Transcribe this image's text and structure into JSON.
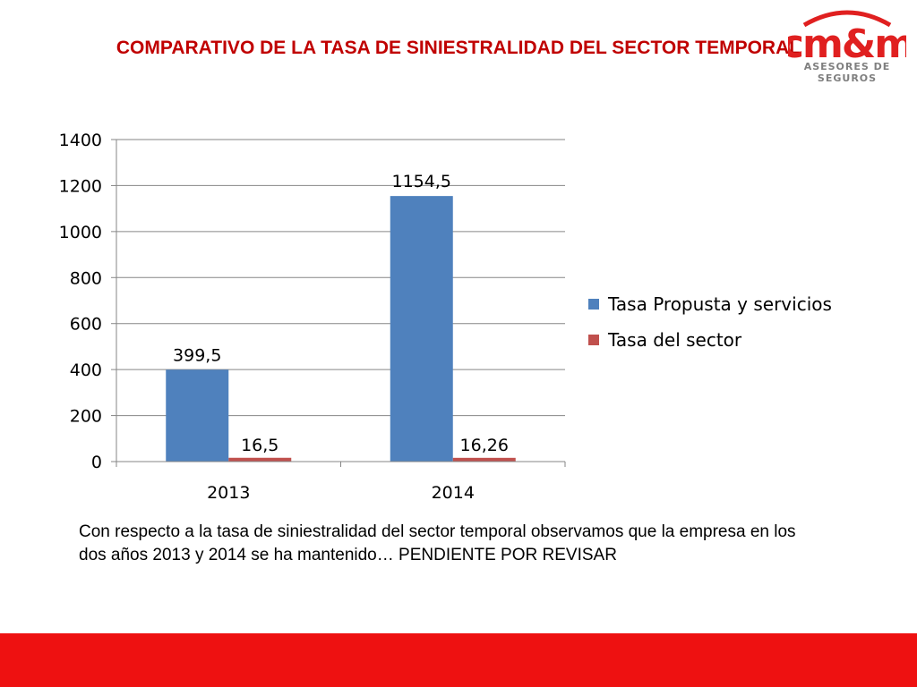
{
  "slide": {
    "title": "COMPARATIVO DE LA  TASA DE SINIESTRALIDAD  DEL SECTOR TEMPORAL",
    "caption": "Con respecto a la tasa de siniestralidad del sector temporal observamos que la empresa en los dos años 2013 y 2014 se ha mantenido… PENDIENTE POR REVISAR"
  },
  "logo": {
    "name": "cm&m",
    "tagline": "ASESORES DE SEGUROS"
  },
  "colors": {
    "title": "#c00000",
    "footer_bar": "#ee1111",
    "series_1": "#4f81bd",
    "series_2": "#c0504d",
    "logo_red": "#e02020",
    "logo_gray": "#7f7f7f"
  },
  "chart_data": {
    "type": "bar",
    "categories": [
      "2013",
      "2014"
    ],
    "series": [
      {
        "name": "Tasa Propusta y servicios",
        "values": [
          399.5,
          1154.5
        ],
        "labels": [
          "399,5",
          "1154,5"
        ]
      },
      {
        "name": "Tasa del sector",
        "values": [
          16.5,
          16.26
        ],
        "labels": [
          "16,5",
          "16,26"
        ]
      }
    ],
    "ylim": [
      0,
      1400
    ],
    "yticks": [
      0,
      200,
      400,
      600,
      800,
      1000,
      1200,
      1400
    ],
    "grid": true,
    "legend": "right"
  }
}
